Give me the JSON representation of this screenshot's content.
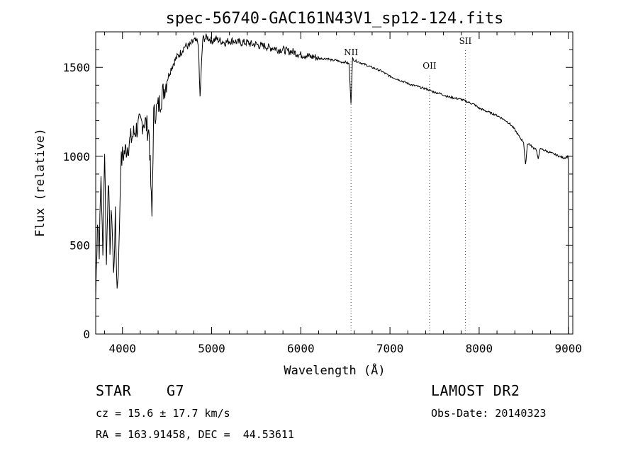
{
  "chart_data": {
    "type": "line",
    "title": "spec-56740-GAC161N43V1_sp12-124.fits",
    "xlabel": "Wavelength (Å)",
    "ylabel": "Flux (relative)",
    "xlim": [
      3700,
      9050
    ],
    "ylim": [
      0,
      1700
    ],
    "x_ticks": [
      4000,
      5000,
      6000,
      7000,
      8000,
      9000
    ],
    "y_ticks": [
      0,
      500,
      1000,
      1500
    ],
    "grid": false,
    "line_color": "#000000",
    "series": [
      {
        "x": [
          3700,
          3720,
          3740,
          3760,
          3780,
          3800,
          3820,
          3840,
          3860,
          3880,
          3900,
          3920,
          3940,
          3960,
          3980,
          4000,
          4050,
          4100,
          4150,
          4200,
          4250,
          4300,
          4330,
          4350,
          4400,
          4450,
          4500,
          4550,
          4600,
          4650,
          4700,
          4750,
          4800,
          4850,
          4870,
          4900,
          4950,
          5000,
          5050,
          5100,
          5150,
          5200,
          5250,
          5300,
          5350,
          5400,
          5450,
          5500,
          5550,
          5600,
          5650,
          5700,
          5750,
          5800,
          5850,
          5900,
          5950,
          6000,
          6050,
          6100,
          6150,
          6200,
          6250,
          6300,
          6350,
          6400,
          6450,
          6500,
          6540,
          6563,
          6580,
          6600,
          6650,
          6700,
          6750,
          6800,
          6850,
          6900,
          6950,
          7000,
          7050,
          7100,
          7150,
          7200,
          7250,
          7300,
          7350,
          7400,
          7450,
          7500,
          7550,
          7600,
          7650,
          7700,
          7750,
          7800,
          7850,
          7900,
          7950,
          8000,
          8050,
          8100,
          8150,
          8200,
          8250,
          8300,
          8350,
          8400,
          8450,
          8498,
          8520,
          8542,
          8560,
          8600,
          8640,
          8662,
          8680,
          8700,
          8750,
          8800,
          8850,
          8900,
          8950,
          9000
        ],
        "y": [
          200,
          650,
          480,
          900,
          420,
          1050,
          380,
          900,
          500,
          700,
          320,
          650,
          250,
          450,
          950,
          1000,
          1050,
          1100,
          1150,
          1180,
          1200,
          1130,
          650,
          1230,
          1280,
          1350,
          1430,
          1500,
          1550,
          1580,
          1620,
          1620,
          1650,
          1640,
          1330,
          1660,
          1670,
          1650,
          1660,
          1650,
          1640,
          1650,
          1650,
          1640,
          1640,
          1640,
          1630,
          1630,
          1620,
          1620,
          1610,
          1610,
          1600,
          1600,
          1590,
          1590,
          1580,
          1570,
          1570,
          1560,
          1560,
          1550,
          1550,
          1550,
          1540,
          1540,
          1530,
          1530,
          1520,
          1300,
          1550,
          1540,
          1530,
          1520,
          1510,
          1500,
          1490,
          1480,
          1465,
          1450,
          1440,
          1430,
          1420,
          1410,
          1400,
          1395,
          1385,
          1380,
          1370,
          1360,
          1355,
          1345,
          1335,
          1330,
          1325,
          1320,
          1310,
          1300,
          1290,
          1270,
          1260,
          1250,
          1240,
          1230,
          1215,
          1200,
          1180,
          1150,
          1110,
          1080,
          950,
          1070,
          1070,
          1050,
          1040,
          980,
          1040,
          1040,
          1030,
          1020,
          1010,
          1000,
          990,
          1000
        ]
      }
    ],
    "lines": [
      {
        "label": "NII",
        "x": 6563
      },
      {
        "label": "OII",
        "x": 7444
      },
      {
        "label": "SII",
        "x": 7845
      }
    ]
  },
  "info": {
    "object_class": "STAR",
    "subclass": "G7",
    "survey": "LAMOST DR2",
    "redshift": "cz = 15.6 ± 17.7 km/s",
    "obs_date": "Obs-Date: 20140323",
    "coords": "RA = 163.91458, DEC =  44.53611"
  }
}
